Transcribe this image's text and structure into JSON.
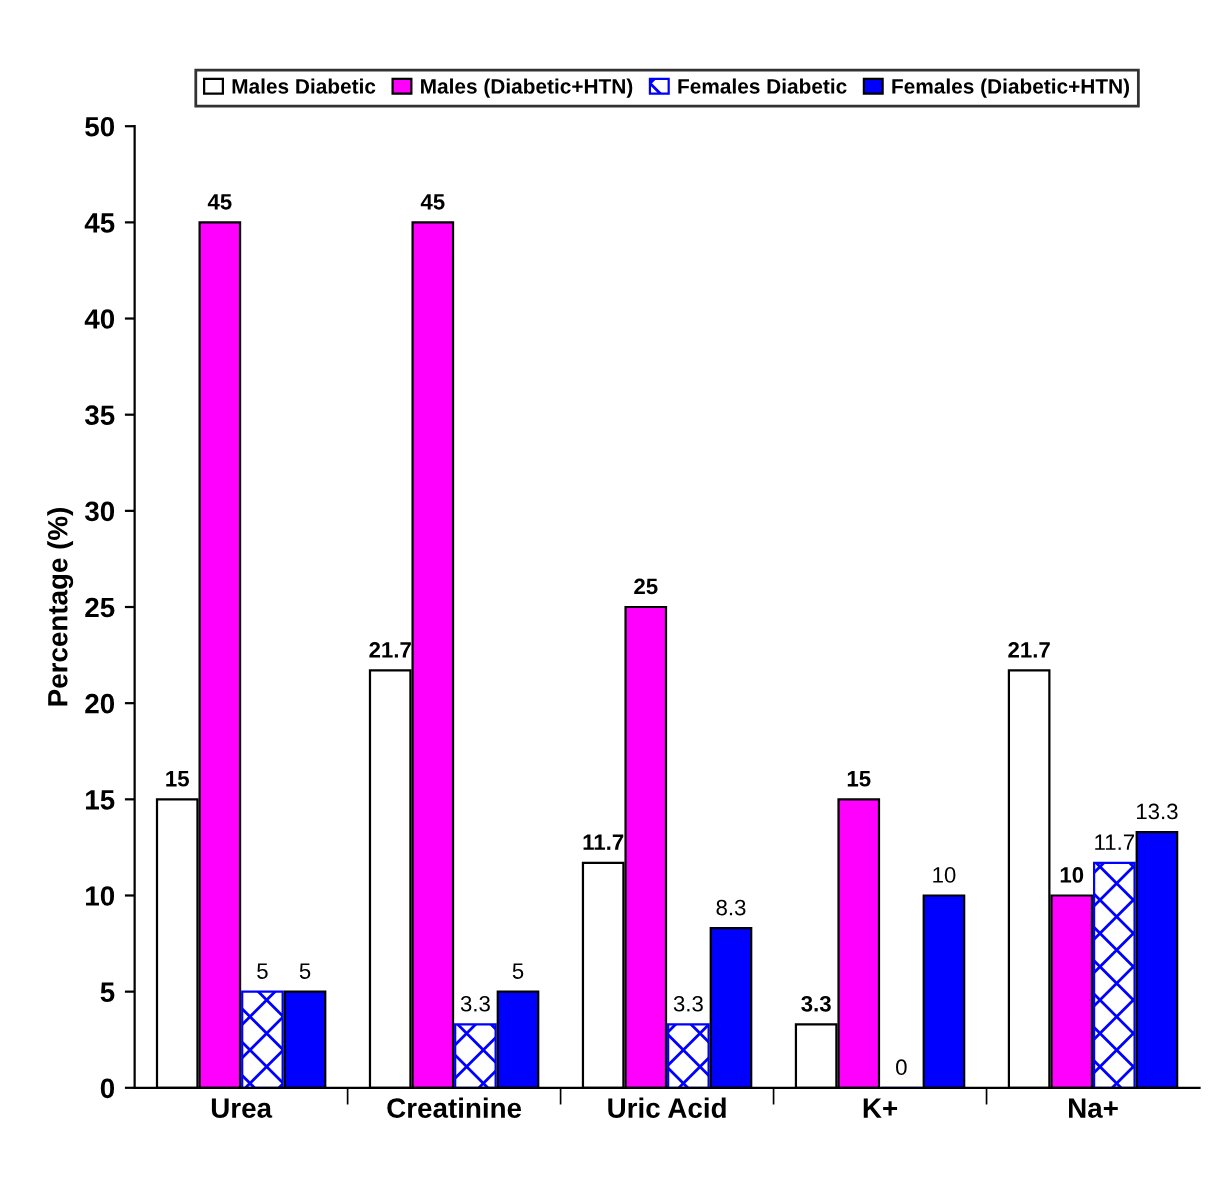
{
  "chart_data": {
    "type": "bar",
    "ylabel": "Percentage (%)",
    "categories": [
      "Urea",
      "Creatinine",
      "Uric Acid",
      "K+",
      "Na+"
    ],
    "series": [
      {
        "name": "Males Diabetic",
        "color": "#ffffff",
        "values": [
          15,
          21.7,
          11.7,
          3.3,
          21.7
        ]
      },
      {
        "name": "Males (Diabetic+HTN)",
        "color": "#ff00ff",
        "values": [
          45,
          45,
          25,
          15,
          10
        ]
      },
      {
        "name": "Females Diabetic",
        "color": "#0000ff",
        "values": [
          5,
          3.3,
          3.3,
          0,
          11.7
        ]
      },
      {
        "name": "Females (Diabetic+HTN)",
        "color": "#0000ff",
        "values": [
          5,
          5,
          8.3,
          10,
          13.3
        ]
      }
    ],
    "ylim": [
      0,
      50
    ],
    "yticks": [
      0,
      5,
      10,
      15,
      20,
      25,
      30,
      35,
      40,
      45,
      50
    ],
    "grid": false,
    "legend": "top",
    "data_labels": true
  }
}
